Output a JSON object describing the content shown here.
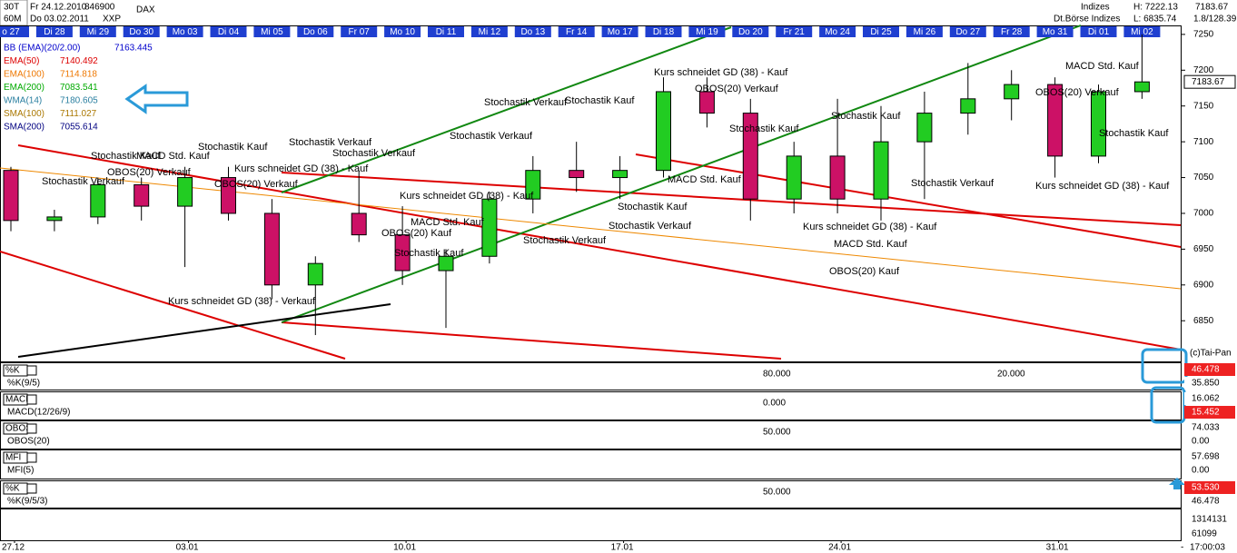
{
  "header": {
    "timeframe_code": "30T",
    "from_date": "Fr 24.12.2010",
    "wkn": "846900",
    "symbol": "DAX",
    "interval": "60M",
    "to_date": "Do 03.02.2011",
    "exchange": "XXP",
    "group": "Indizes",
    "group_full": "Dt.Börse Indizes",
    "high": "H: 7222.13",
    "low": "L: 6835.74",
    "last": "7183.67",
    "change": "1.8/128.39"
  },
  "chart_data": {
    "type": "candlestick",
    "categories": [
      "o 27",
      "Di 28",
      "Mi 29",
      "Do 30",
      "Mo 03",
      "Di 04",
      "Mi 05",
      "Do 06",
      "Fr 07",
      "Mo 10",
      "Di 11",
      "Mi 12",
      "Do 13",
      "Fr 14",
      "Mo 17",
      "Di 18",
      "Mi 19",
      "Do 20",
      "Fr 21",
      "Mo 24",
      "Di 25",
      "Mi 26",
      "Do 27",
      "Fr 28",
      "Mo 31",
      "Di 01",
      "Mi 02"
    ],
    "open": [
      7060,
      6990,
      6995,
      7040,
      7010,
      7050,
      7000,
      6900,
      7000,
      6970,
      6920,
      6940,
      7020,
      7060,
      7050,
      7060,
      7170,
      7140,
      7020,
      7080,
      7020,
      7100,
      7140,
      7160,
      7180,
      7080,
      7170
    ],
    "high": [
      7065,
      7005,
      7050,
      7050,
      7065,
      7065,
      7020,
      6940,
      7060,
      7010,
      6950,
      7030,
      7080,
      7100,
      7080,
      7190,
      7190,
      7160,
      7100,
      7160,
      7150,
      7170,
      7210,
      7200,
      7190,
      7180,
      7250
    ],
    "low": [
      6975,
      6975,
      6985,
      6990,
      6925,
      6990,
      6880,
      6830,
      6960,
      6900,
      6840,
      6930,
      7000,
      7030,
      7020,
      7050,
      7120,
      6990,
      7000,
      7000,
      6990,
      7020,
      7110,
      7130,
      7050,
      7070,
      7160
    ],
    "close": [
      6990,
      6995,
      7040,
      7010,
      7050,
      7000,
      6900,
      6930,
      6970,
      6920,
      6940,
      7020,
      7060,
      7050,
      7060,
      7170,
      7140,
      7020,
      7080,
      7020,
      7100,
      7140,
      7160,
      7180,
      7080,
      7170,
      7183.67
    ],
    "up_color": "#22cc22",
    "down_color": "#cc1166",
    "ylim": [
      6797,
      7260
    ],
    "yticks": [
      6850,
      6900,
      6950,
      7000,
      7050,
      7100,
      7150,
      7200,
      7250
    ],
    "last_price": 7183.67,
    "x_axis_labels": [
      "27.12",
      "03.01",
      "10.01",
      "17.01",
      "24.01",
      "31.01"
    ],
    "time_label": "17:00:03",
    "legend": [
      {
        "name": "BB (EMA)(20/2.00)",
        "value": 7163.445,
        "color": "#0000cc"
      },
      {
        "name": "EMA(50)",
        "value": 7140.492,
        "color": "#dd0000"
      },
      {
        "name": "EMA(100)",
        "value": 7114.818,
        "color": "#ee7700"
      },
      {
        "name": "EMA(200)",
        "value": 7083.541,
        "color": "#00aa00"
      },
      {
        "name": "WMA(14)",
        "value": 7180.605,
        "color": "#2a7fa0"
      },
      {
        "name": "SMA(100)",
        "value": 7111.027,
        "color": "#aa7700"
      },
      {
        "name": "SMA(200)",
        "value": 7055.614,
        "color": "#000080"
      }
    ],
    "annotations": [
      "Stochastik Verkauf",
      "Stochastik Kauf",
      "MACD Std. Kauf",
      "Stochastik Kauf",
      "Stochastik Verkauf",
      "OBOS(20) Verkauf",
      "OBOS(20) Verkauf",
      "Kurs schneidet GD (38) - Kauf",
      "Kurs schneidet GD (38) - Verkauf",
      "Kurs schneidet GD (38) - Kauf",
      "MACD Std. Kauf",
      "OBOS(20) Kauf",
      "Stochastik Kauf",
      "Stochastik Verkauf",
      "Stochastik Verkauf",
      "Stochastik Verkauf",
      "Stochastik Kauf",
      "Kurs schneidet GD (38) - Kauf",
      "OBOS(20) Verkauf",
      "Stochastik Kauf",
      "MACD Std. Kauf",
      "Stochastik Kauf",
      "Stochastik Verkauf",
      "Kurs schneidet GD (38) - Kauf",
      "MACD Std. Kauf",
      "OBOS(20) Kauf",
      "Stochastik Kauf",
      "Stochastik Verkauf",
      "MACD Std. Kauf",
      "OBOS(20) Verkauf",
      "Stochastik Kauf",
      "Kurs schneidet GD (38) - Kauf",
      "Stochastik Verkauf"
    ],
    "copyright": "(c)Tai-Pan"
  },
  "panels": [
    {
      "name": "%K",
      "label": "%K(9/5)",
      "values": [
        46.478,
        35.85
      ],
      "value_labels": [
        "46.478",
        "35.850"
      ],
      "levels": [
        80,
        20
      ],
      "level_labels": [
        "80.000",
        "20.000"
      ]
    },
    {
      "name": "MACD",
      "label": "MACD(12/26/9)",
      "values": [
        16.062,
        15.452
      ],
      "value_labels": [
        "16.062",
        "15.452"
      ],
      "levels": [
        0
      ],
      "level_labels": [
        "0.000"
      ]
    },
    {
      "name": "OBOS",
      "label": "OBOS(20)",
      "values": [
        74.033,
        0
      ],
      "value_labels": [
        "74.033",
        "0.00"
      ],
      "levels": [
        50
      ],
      "level_labels": [
        "50.000"
      ]
    },
    {
      "name": "MFI",
      "label": "MFI(5)",
      "values": [
        57.698,
        0
      ],
      "value_labels": [
        "57.698",
        "0.00"
      ],
      "levels": [],
      "level_labels": []
    },
    {
      "name": "%K",
      "label": "%K(9/5/3)",
      "values": [
        53.53,
        46.478
      ],
      "value_labels": [
        "53.530",
        "46.478"
      ],
      "levels": [
        50
      ],
      "level_labels": [
        "50.000"
      ]
    }
  ],
  "volume": {
    "max_label": 1314131,
    "last_label": 61099
  }
}
